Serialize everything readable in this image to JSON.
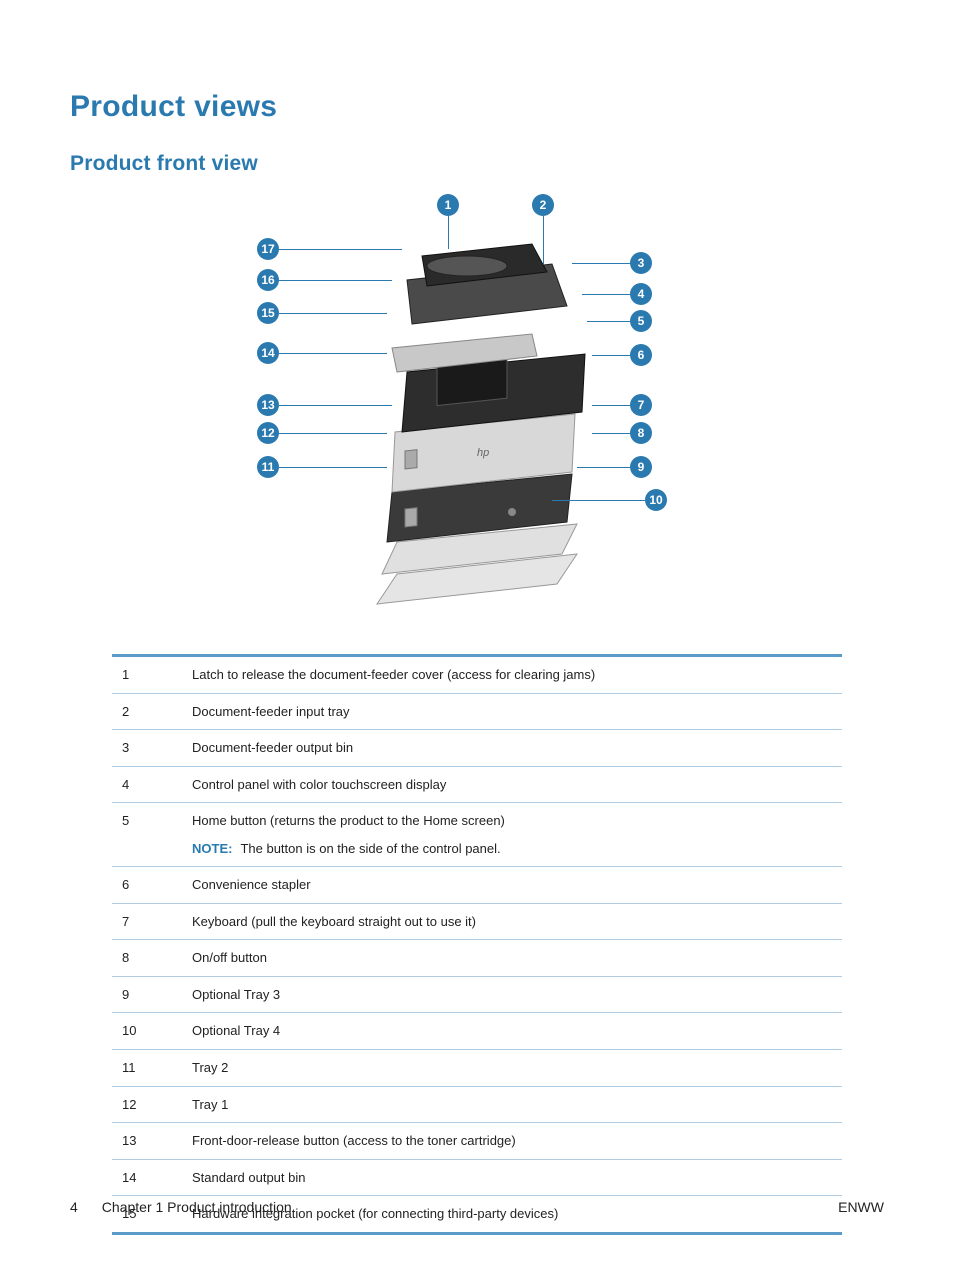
{
  "heading1": "Product views",
  "heading2": "Product front view",
  "callout_color": "#2a7ab0",
  "callouts_top": [
    {
      "n": "1"
    },
    {
      "n": "2"
    }
  ],
  "callouts_right": [
    {
      "n": "3"
    },
    {
      "n": "4"
    },
    {
      "n": "5"
    },
    {
      "n": "6"
    },
    {
      "n": "7"
    },
    {
      "n": "8"
    },
    {
      "n": "9"
    },
    {
      "n": "10"
    }
  ],
  "callouts_left": [
    {
      "n": "17"
    },
    {
      "n": "16"
    },
    {
      "n": "15"
    },
    {
      "n": "14"
    },
    {
      "n": "13"
    },
    {
      "n": "12"
    },
    {
      "n": "11"
    }
  ],
  "note_label": "NOTE:",
  "table": [
    {
      "num": "1",
      "desc": "Latch to release the document-feeder cover (access for clearing jams)"
    },
    {
      "num": "2",
      "desc": "Document-feeder input tray"
    },
    {
      "num": "3",
      "desc": "Document-feeder output bin"
    },
    {
      "num": "4",
      "desc": "Control panel with color touchscreen display"
    },
    {
      "num": "5",
      "desc": "Home button (returns the product to the Home screen)",
      "note": "The button is on the side of the control panel."
    },
    {
      "num": "6",
      "desc": "Convenience stapler"
    },
    {
      "num": "7",
      "desc": "Keyboard (pull the keyboard straight out to use it)"
    },
    {
      "num": "8",
      "desc": "On/off button"
    },
    {
      "num": "9",
      "desc": "Optional Tray 3"
    },
    {
      "num": "10",
      "desc": "Optional Tray 4"
    },
    {
      "num": "11",
      "desc": "Tray 2"
    },
    {
      "num": "12",
      "desc": "Tray 1"
    },
    {
      "num": "13",
      "desc": "Front-door-release button (access to the toner cartridge)"
    },
    {
      "num": "14",
      "desc": "Standard output bin"
    },
    {
      "num": "15",
      "desc": "Hardware integration pocket (for connecting third-party devices)"
    }
  ],
  "footer": {
    "page": "4",
    "chapter": "Chapter 1   Product introduction",
    "lang": "ENWW"
  }
}
